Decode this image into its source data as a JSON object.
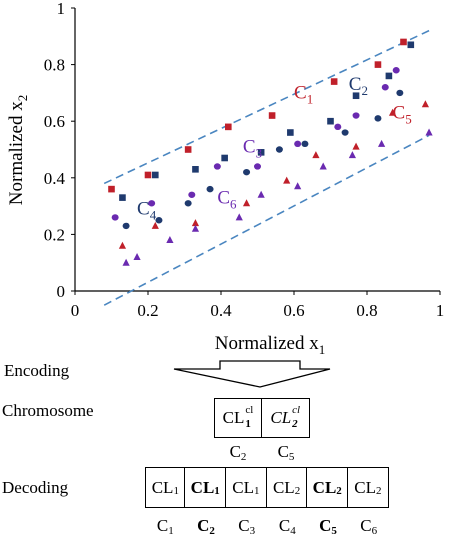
{
  "chart_data": {
    "type": "scatter",
    "xlabel": "Normalized x",
    "xlabel_sub": "1",
    "ylabel": "Normalized x",
    "ylabel_sub": "2",
    "xlim": [
      0,
      1
    ],
    "ylim": [
      0,
      1
    ],
    "xticks": [
      "0",
      "0.2",
      "0.4",
      "0.6",
      "0.8",
      "1"
    ],
    "yticks": [
      "0",
      "0.2",
      "0.4",
      "0.6",
      "0.8",
      "1"
    ],
    "boundary_lines": [
      {
        "x1": 0.08,
        "y1": 0.38,
        "x2": 0.97,
        "y2": 0.92
      },
      {
        "x1": 0.08,
        "y1": -0.05,
        "x2": 0.97,
        "y2": 0.55
      }
    ],
    "series": [
      {
        "name": "C1",
        "label_text": "C",
        "label_sub": "1",
        "color": "#c0202a",
        "marker": "square",
        "label_at": [
          0.6,
          0.68
        ],
        "points": [
          [
            0.1,
            0.36
          ],
          [
            0.2,
            0.41
          ],
          [
            0.31,
            0.5
          ],
          [
            0.42,
            0.58
          ],
          [
            0.54,
            0.62
          ],
          [
            0.71,
            0.74
          ],
          [
            0.83,
            0.8
          ],
          [
            0.9,
            0.88
          ]
        ]
      },
      {
        "name": "C2",
        "label_text": "C",
        "label_sub": "2",
        "color": "#1f3a6e",
        "marker": "square",
        "label_at": [
          0.75,
          0.71
        ],
        "points": [
          [
            0.13,
            0.33
          ],
          [
            0.22,
            0.41
          ],
          [
            0.33,
            0.43
          ],
          [
            0.41,
            0.47
          ],
          [
            0.51,
            0.49
          ],
          [
            0.59,
            0.56
          ],
          [
            0.7,
            0.6
          ],
          [
            0.77,
            0.69
          ],
          [
            0.86,
            0.76
          ],
          [
            0.92,
            0.87
          ]
        ]
      },
      {
        "name": "C3",
        "label_text": "C",
        "label_sub": "3",
        "color": "#6a2ab0",
        "marker": "circle",
        "label_at": [
          0.46,
          0.49
        ],
        "points": [
          [
            0.11,
            0.26
          ],
          [
            0.21,
            0.31
          ],
          [
            0.32,
            0.34
          ],
          [
            0.39,
            0.44
          ],
          [
            0.5,
            0.44
          ],
          [
            0.61,
            0.52
          ],
          [
            0.72,
            0.58
          ],
          [
            0.77,
            0.62
          ],
          [
            0.85,
            0.72
          ],
          [
            0.88,
            0.78
          ]
        ]
      },
      {
        "name": "C4",
        "label_text": "C",
        "label_sub": "4",
        "color": "#1f3a6e",
        "marker": "circle",
        "label_at": [
          0.17,
          0.27
        ],
        "points": [
          [
            0.14,
            0.23
          ],
          [
            0.23,
            0.25
          ],
          [
            0.31,
            0.31
          ],
          [
            0.37,
            0.36
          ],
          [
            0.47,
            0.42
          ],
          [
            0.56,
            0.5
          ],
          [
            0.63,
            0.52
          ],
          [
            0.74,
            0.56
          ],
          [
            0.83,
            0.61
          ],
          [
            0.89,
            0.7
          ]
        ]
      },
      {
        "name": "C5",
        "label_text": "C",
        "label_sub": "5",
        "color": "#c0202a",
        "marker": "triangle",
        "label_at": [
          0.87,
          0.61
        ],
        "points": [
          [
            0.13,
            0.16
          ],
          [
            0.22,
            0.23
          ],
          [
            0.33,
            0.24
          ],
          [
            0.47,
            0.31
          ],
          [
            0.58,
            0.39
          ],
          [
            0.66,
            0.48
          ],
          [
            0.77,
            0.51
          ],
          [
            0.87,
            0.63
          ],
          [
            0.96,
            0.66
          ]
        ]
      },
      {
        "name": "C6",
        "label_text": "C",
        "label_sub": "6",
        "color": "#6a2ab0",
        "marker": "triangle",
        "label_at": [
          0.39,
          0.31
        ],
        "points": [
          [
            0.14,
            0.1
          ],
          [
            0.17,
            0.12
          ],
          [
            0.26,
            0.18
          ],
          [
            0.33,
            0.22
          ],
          [
            0.45,
            0.26
          ],
          [
            0.51,
            0.34
          ],
          [
            0.61,
            0.37
          ],
          [
            0.68,
            0.44
          ],
          [
            0.76,
            0.48
          ],
          [
            0.84,
            0.52
          ],
          [
            0.97,
            0.56
          ]
        ]
      }
    ]
  },
  "encoding_label": "Encoding",
  "chromosome": {
    "label": "Chromosome",
    "genes": [
      {
        "main": "CL",
        "sup": "cl",
        "sub": "1",
        "italic": false
      },
      {
        "main": "CL",
        "sup": "cl",
        "sub": "2",
        "italic": true
      }
    ],
    "clusters": [
      {
        "text": "C",
        "sub": "2"
      },
      {
        "text": "C",
        "sub": "5"
      }
    ]
  },
  "decoding": {
    "label": "Decoding",
    "cells": [
      {
        "text": "CL",
        "sub": "1",
        "bold": false
      },
      {
        "text": "CL",
        "sub": "1",
        "bold": true
      },
      {
        "text": "CL",
        "sub": "1",
        "bold": false
      },
      {
        "text": "CL",
        "sub": "2",
        "bold": false
      },
      {
        "text": "CL",
        "sub": "2",
        "bold": true
      },
      {
        "text": "CL",
        "sub": "2",
        "bold": false
      }
    ],
    "clusters": [
      {
        "text": "C",
        "sub": "1",
        "bold": false
      },
      {
        "text": "C",
        "sub": "2",
        "bold": true
      },
      {
        "text": "C",
        "sub": "3",
        "bold": false
      },
      {
        "text": "C",
        "sub": "4",
        "bold": false
      },
      {
        "text": "C",
        "sub": "5",
        "bold": true
      },
      {
        "text": "C",
        "sub": "6",
        "bold": false
      }
    ]
  }
}
